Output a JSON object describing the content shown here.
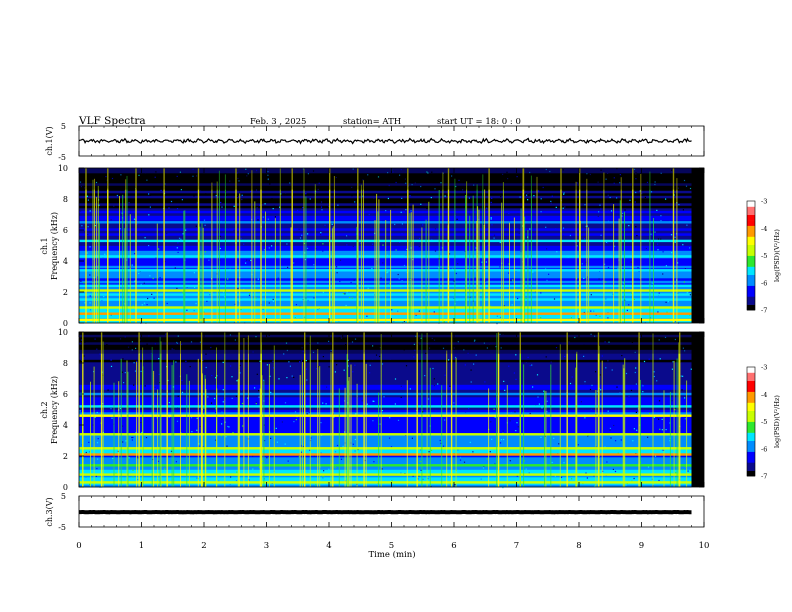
{
  "header": {
    "title": "VLF Spectra",
    "date": "Feb. 3 , 2025",
    "station": "station= ATH",
    "start_ut": "start UT = 18: 0 : 0"
  },
  "colors": {
    "ch1_wave": "#000000",
    "ch3_wave": "#000000",
    "colormap": [
      "#000000",
      "#0a0a8c",
      "#0000ff",
      "#008cff",
      "#00e6ff",
      "#2ee82e",
      "#c8ff00",
      "#ffff00",
      "#ff9900",
      "#ff0000",
      "#ff7070",
      "#ffffff"
    ]
  },
  "chart_data": [
    {
      "type": "line",
      "name": "ch1-waveform",
      "ylabel": "ch.1(V)",
      "ylim": [
        -5,
        5
      ],
      "yticks": [
        "5",
        "-5"
      ],
      "xlim": [
        0,
        10
      ],
      "data_xrange": [
        0,
        9.8
      ],
      "baseline": 0,
      "amplitude": 0.7
    },
    {
      "type": "heatmap",
      "name": "ch1-spectrogram",
      "ylabel": "ch.1\nFrequency (kHz)",
      "ylim": [
        0,
        10
      ],
      "yticks": [
        "0",
        "2",
        "4",
        "6",
        "8",
        "10"
      ],
      "xlim": [
        0,
        10
      ],
      "data_xrange": [
        0,
        9.8
      ],
      "bands_khz": [
        {
          "f": 0.2,
          "level": -4.6
        },
        {
          "f": 0.6,
          "level": -4.2
        },
        {
          "f": 1.0,
          "level": -4.8
        },
        {
          "f": 2.1,
          "level": -5.0
        },
        {
          "f": 2.4,
          "level": -5.4
        },
        {
          "f": 3.4,
          "level": -5.5
        },
        {
          "f": 4.3,
          "level": -5.6
        },
        {
          "f": 5.3,
          "level": -5.7
        },
        {
          "f": 6.5,
          "level": -5.8
        }
      ],
      "spike_times_min": [
        0.1,
        0.45,
        0.9,
        1.35,
        1.9,
        2.5,
        2.9,
        3.4,
        4.0,
        4.45,
        5.25,
        5.9,
        6.55,
        7.1,
        7.7,
        8.0,
        8.85,
        9.5
      ],
      "colorbar": {
        "label": "log(PSD)(V²/Hz)",
        "range": [
          -7,
          -3
        ],
        "ticks": [
          "-3",
          "-4",
          "-5",
          "-6",
          "-7"
        ]
      }
    },
    {
      "type": "heatmap",
      "name": "ch2-spectrogram",
      "ylabel": "ch.2\nFrequency (kHz)",
      "ylim": [
        0,
        10
      ],
      "yticks": [
        "0",
        "2",
        "4",
        "6",
        "8",
        "10"
      ],
      "xlim": [
        0,
        10
      ],
      "data_xrange": [
        0,
        9.8
      ],
      "bands_khz": [
        {
          "f": 0.3,
          "level": -4.8
        },
        {
          "f": 0.8,
          "level": -5.0
        },
        {
          "f": 1.4,
          "level": -5.2
        },
        {
          "f": 2.1,
          "level": -4.0
        },
        {
          "f": 2.5,
          "level": -4.8
        },
        {
          "f": 3.4,
          "level": -4.9
        },
        {
          "f": 4.6,
          "level": -4.6
        },
        {
          "f": 5.2,
          "level": -5.5
        },
        {
          "f": 6.0,
          "level": -5.8
        }
      ],
      "spike_times_min": [
        0.05,
        0.35,
        0.95,
        1.4,
        1.95,
        2.55,
        2.9,
        3.6,
        4.05,
        4.55,
        5.4,
        5.95,
        6.7,
        7.05,
        7.8,
        8.3,
        8.95,
        9.6
      ],
      "colorbar": {
        "label": "log(PSD)(V²/Hz)",
        "range": [
          -7,
          -3
        ],
        "ticks": [
          "-3",
          "-4",
          "-5",
          "-6",
          "-7"
        ]
      }
    },
    {
      "type": "line",
      "name": "ch3-waveform",
      "ylabel": "ch.3(V)",
      "ylim": [
        -5,
        5
      ],
      "yticks": [
        "5",
        "-5"
      ],
      "xlim": [
        0,
        10
      ],
      "data_xrange": [
        0,
        9.8
      ],
      "baseline": -0.2,
      "amplitude": 0.05
    }
  ],
  "xaxis": {
    "label": "Time (min)",
    "ticks": [
      "0",
      "1",
      "2",
      "3",
      "4",
      "5",
      "6",
      "7",
      "8",
      "9",
      "10"
    ]
  }
}
